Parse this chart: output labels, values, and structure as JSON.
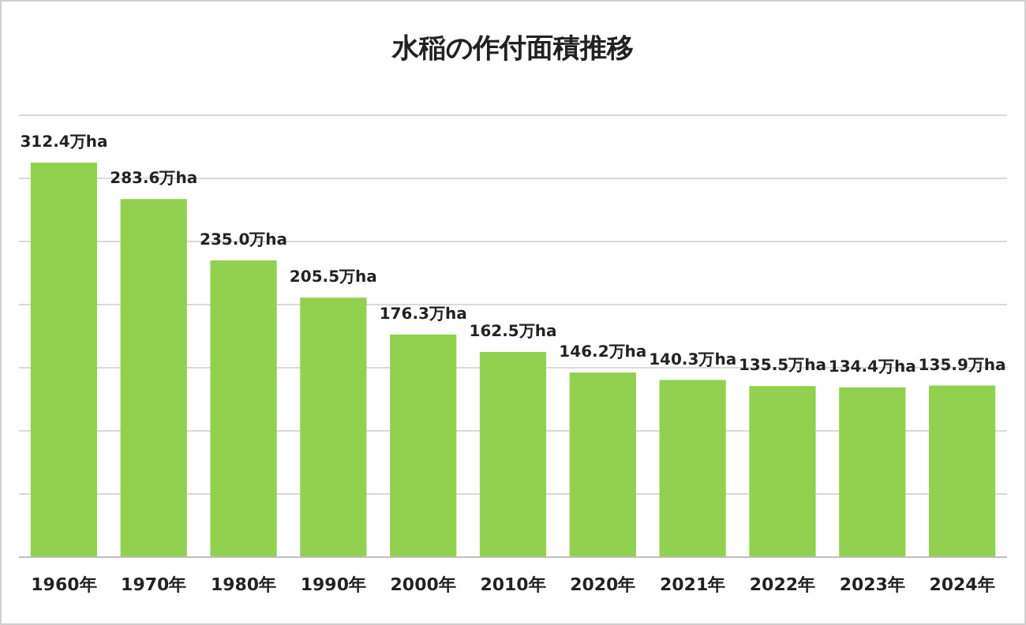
{
  "chart_data": {
    "type": "bar",
    "title": "水稲の作付面積推移",
    "categories": [
      "1960年",
      "1970年",
      "1980年",
      "1990年",
      "2000年",
      "2010年",
      "2020年",
      "2021年",
      "2022年",
      "2023年",
      "2024年"
    ],
    "values": [
      312.4,
      283.6,
      235.0,
      205.5,
      176.3,
      162.5,
      146.2,
      140.3,
      135.5,
      134.4,
      135.9
    ],
    "value_labels": [
      "312.4万ha",
      "283.6万ha",
      "235.0万ha",
      "205.5万ha",
      "176.3万ha",
      "162.5万ha",
      "146.2万ha",
      "140.3万ha",
      "135.5万ha",
      "134.4万ha",
      "135.9万ha"
    ],
    "color": "#92d050",
    "ylim": [
      0,
      350
    ],
    "yticks": [
      {
        "value": 0,
        "label": null
      },
      {
        "value": 50,
        "label": null
      },
      {
        "value": 100,
        "label": null
      },
      {
        "value": 150,
        "label": null
      },
      {
        "value": 200,
        "label": null
      },
      {
        "value": 250,
        "label": null
      },
      {
        "value": 300,
        "label": null
      },
      {
        "value": 350,
        "label": null
      }
    ],
    "grid": "y",
    "tick_labels": "x"
  }
}
